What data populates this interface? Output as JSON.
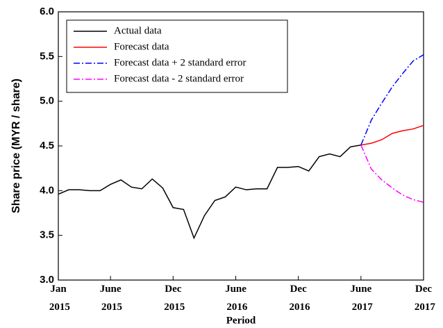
{
  "chart_data": {
    "type": "line",
    "x_label": "Period",
    "y_label": "Share price (MYR / share)",
    "xlim": [
      0,
      35
    ],
    "xticks": [
      {
        "value": 0,
        "label": "Jan 2015"
      },
      {
        "value": 5,
        "label": "June 2015"
      },
      {
        "value": 11,
        "label": "Dec 2015"
      },
      {
        "value": 17,
        "label": "June 2016"
      },
      {
        "value": 23,
        "label": "Dec 2016"
      },
      {
        "value": 29,
        "label": "June 2017"
      },
      {
        "value": 35,
        "label": "Dec 2017"
      }
    ],
    "ylim": [
      3,
      6
    ],
    "yticks": [
      {
        "value": 3,
        "label": "3.0"
      },
      3.5,
      {
        "value": 4,
        "label": "4.0"
      },
      4.5,
      {
        "value": 5,
        "label": "5.0"
      },
      5.5,
      {
        "value": 6,
        "label": "6.0"
      }
    ],
    "legend": "top-left",
    "series": [
      {
        "name": "Actual data",
        "color": "#000000",
        "dash": "solid",
        "x": [
          0,
          1,
          2,
          3,
          4,
          5,
          6,
          7,
          8,
          9,
          10,
          11,
          12,
          13,
          14,
          15,
          16,
          17,
          18,
          19,
          20,
          21,
          22,
          23,
          24,
          25,
          26,
          27,
          28,
          29
        ],
        "values": [
          3.96,
          4.01,
          4.01,
          4.0,
          4.0,
          4.07,
          4.12,
          4.04,
          4.02,
          4.13,
          4.03,
          3.81,
          3.79,
          3.47,
          3.72,
          3.89,
          3.93,
          4.04,
          4.01,
          4.02,
          4.02,
          4.26,
          4.26,
          4.27,
          4.22,
          4.38,
          4.41,
          4.38,
          4.49,
          4.51
        ]
      },
      {
        "name": "Forecast data",
        "color": "#ff0000",
        "dash": "solid",
        "x": [
          29,
          30,
          31,
          32,
          33,
          34,
          35
        ],
        "values": [
          4.51,
          4.53,
          4.57,
          4.64,
          4.67,
          4.69,
          4.73
        ]
      },
      {
        "name": "Forecast data + 2 standard error",
        "color": "#0000ff",
        "dash": "dashdot",
        "x": [
          29,
          30,
          31,
          32,
          33,
          34,
          35
        ],
        "values": [
          4.51,
          4.79,
          4.98,
          5.16,
          5.31,
          5.45,
          5.52
        ]
      },
      {
        "name": "Forecast data - 2 standard error",
        "color": "#ff00ff",
        "dash": "dashdot",
        "x": [
          29,
          30,
          31,
          32,
          33,
          34,
          35
        ],
        "values": [
          4.51,
          4.24,
          4.12,
          4.03,
          3.95,
          3.9,
          3.87
        ]
      }
    ]
  }
}
